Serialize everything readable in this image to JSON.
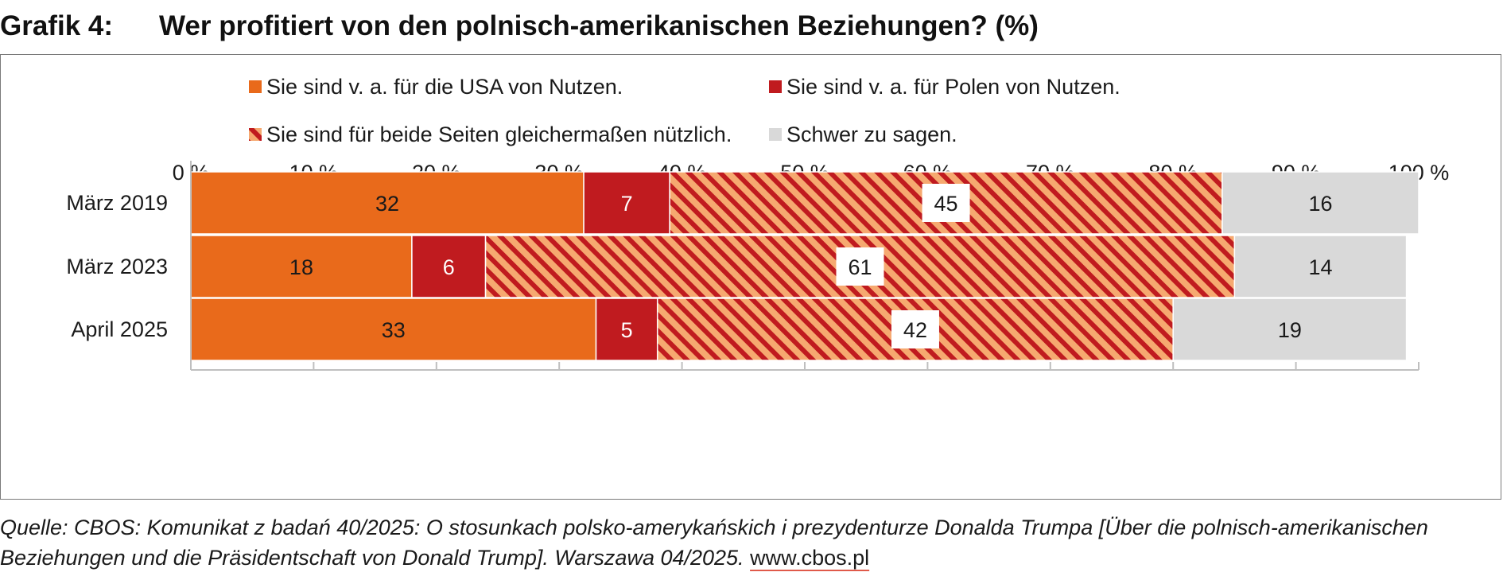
{
  "figure": {
    "label": "Grafik 4:",
    "title": "Wer profitiert von den polnisch-amerikanischen Beziehungen? (%)"
  },
  "source": {
    "text": "Quelle: CBOS: Komunikat z badań 40/2025: O stosunkach polsko-amerykańskich i prezydenturze Donalda Trumpa [Über die polnisch-amerikanischen Beziehungen und die Präsidentschaft von Donald Trump]. Warszawa 04/2025.",
    "link": "www.cbos.pl"
  },
  "colors": {
    "usa": "#e96a1b",
    "poland": "#c01b1f",
    "both_light": "#f6a970",
    "both_dark": "#c01b1f",
    "unsure": "#d9d9d9",
    "axis": "#bfbfbf"
  },
  "chart_data": {
    "type": "bar",
    "orientation": "horizontal",
    "stacked": true,
    "title": "Wer profitiert von den polnisch-amerikanischen Beziehungen? (%)",
    "categories": [
      "März 2019",
      "März 2023",
      "April 2025"
    ],
    "series": [
      {
        "name": "Sie sind v. a. für die USA von Nutzen.",
        "key": "usa",
        "values": [
          32,
          18,
          33
        ]
      },
      {
        "name": "Sie sind v. a. für Polen von Nutzen.",
        "key": "poland",
        "values": [
          7,
          6,
          5
        ]
      },
      {
        "name": "Sie sind für beide Seiten gleichermaßen nützlich.",
        "key": "both",
        "pattern": "diagonal-stripes",
        "values": [
          45,
          61,
          42
        ]
      },
      {
        "name": "Schwer zu sagen.",
        "key": "unsure",
        "values": [
          16,
          14,
          19
        ]
      }
    ],
    "xlim": [
      0,
      100
    ],
    "xticks": [
      "0 %",
      "10 %",
      "20 %",
      "30 %",
      "40 %",
      "50 %",
      "60 %",
      "70 %",
      "80 %",
      "90 %",
      "100 %"
    ],
    "xaxis_position": "top",
    "legend_position": "top",
    "grid": false
  }
}
